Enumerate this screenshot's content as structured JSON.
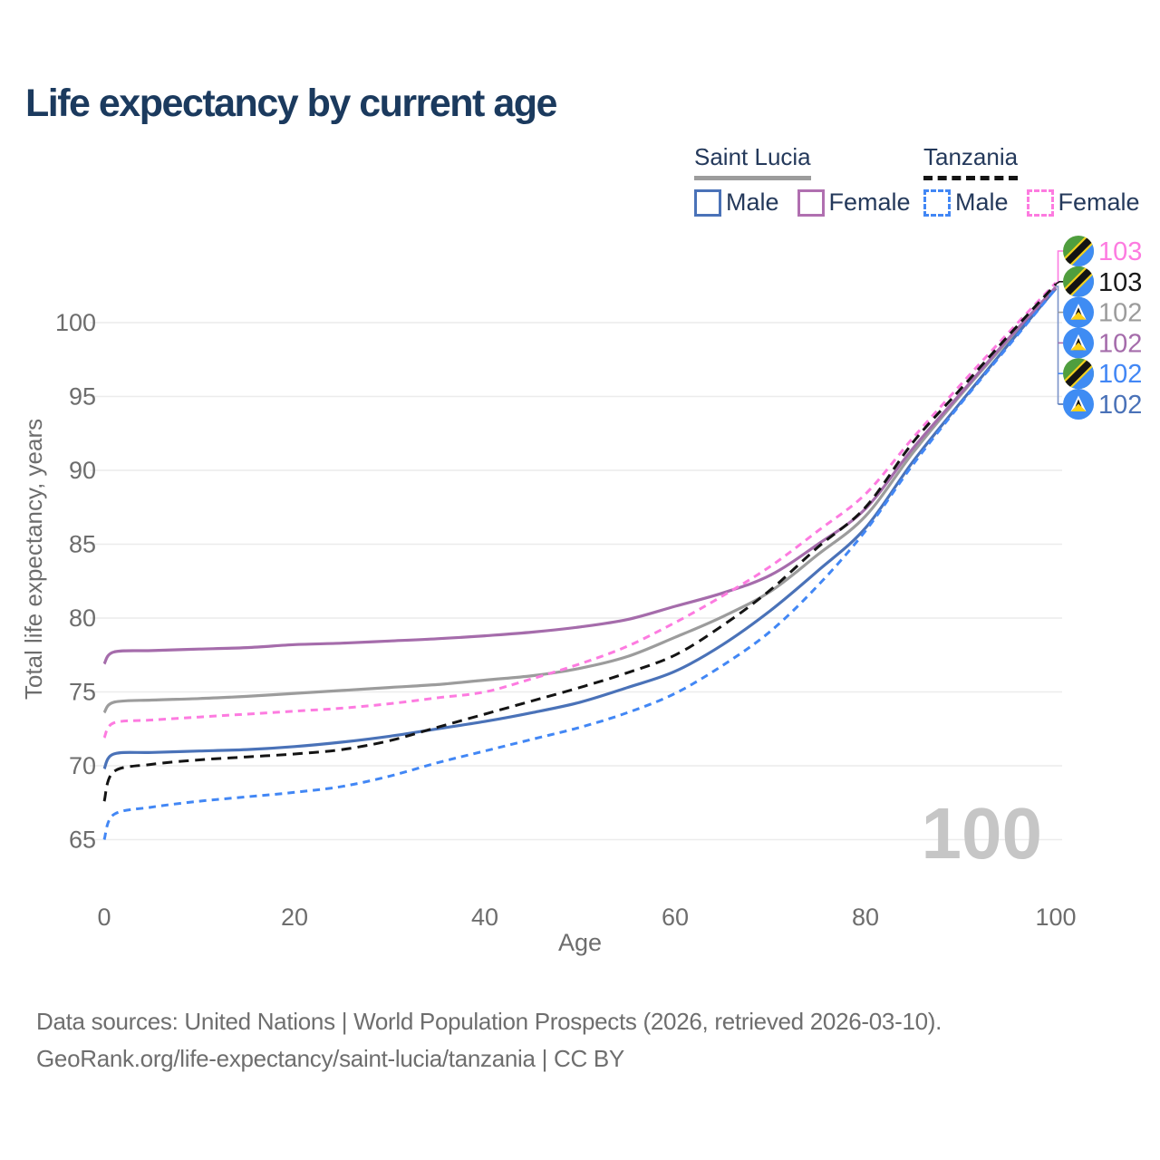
{
  "title": "Life expectancy by current age",
  "watermark": "100",
  "legend": {
    "groups": [
      {
        "country": "Saint Lucia",
        "line_style": "solid",
        "items": [
          {
            "label": "Male",
            "color": "#4a72b8"
          },
          {
            "label": "Female",
            "color": "#b06fb0"
          }
        ]
      },
      {
        "country": "Tanzania",
        "line_style": "dashed",
        "items": [
          {
            "label": "Male",
            "color": "#4287f5"
          },
          {
            "label": "Female",
            "color": "#fd7be0"
          }
        ]
      }
    ]
  },
  "footer": {
    "line1": "Data sources: United Nations | World Population Prospects (2026, retrieved 2026-03-10).",
    "line2": "GeoRank.org/life-expectancy/saint-lucia/tanzania | CC BY"
  },
  "chart_data": {
    "type": "line",
    "title": "Life expectancy by current age",
    "xlabel": "Age",
    "ylabel": "Total life expectancy, years",
    "xlim": [
      0,
      100
    ],
    "ylim": [
      64,
      104
    ],
    "x_ticks": [
      0,
      20,
      40,
      60,
      80,
      100
    ],
    "y_ticks": [
      65,
      70,
      75,
      80,
      85,
      90,
      95,
      100
    ],
    "grid": true,
    "legend_position": "top-right",
    "ages": [
      0,
      1,
      5,
      10,
      15,
      20,
      25,
      30,
      35,
      40,
      45,
      50,
      55,
      60,
      65,
      70,
      75,
      80,
      85,
      90,
      95,
      100
    ],
    "series": [
      {
        "id": "saint-lucia-total",
        "name": "Saint Lucia Total",
        "country": "Saint Lucia",
        "sex": "Both",
        "color": "#9c9c9c",
        "line_style": "solid",
        "values": [
          73.6,
          74.3,
          74.45,
          74.55,
          74.7,
          74.9,
          75.1,
          75.3,
          75.5,
          75.8,
          76.1,
          76.6,
          77.4,
          78.7,
          80.1,
          81.8,
          84.3,
          86.9,
          91.2,
          95.1,
          98.8,
          102.4
        ]
      },
      {
        "id": "saint-lucia-male",
        "name": "Saint Lucia Male",
        "country": "Saint Lucia",
        "sex": "Male",
        "color": "#4a72b8",
        "line_style": "solid",
        "values": [
          69.8,
          70.8,
          70.9,
          71.0,
          71.1,
          71.3,
          71.6,
          72.0,
          72.5,
          73.0,
          73.6,
          74.3,
          75.3,
          76.4,
          78.2,
          80.5,
          83.2,
          86.1,
          90.6,
          94.6,
          98.5,
          102.3
        ]
      },
      {
        "id": "saint-lucia-female",
        "name": "Saint Lucia Female",
        "country": "Saint Lucia",
        "sex": "Female",
        "color": "#a56cab",
        "line_style": "solid",
        "values": [
          76.9,
          77.7,
          77.8,
          77.9,
          78.0,
          78.2,
          78.3,
          78.45,
          78.6,
          78.8,
          79.05,
          79.4,
          79.9,
          80.8,
          81.7,
          82.9,
          85.0,
          87.4,
          91.5,
          95.2,
          98.9,
          102.4
        ]
      },
      {
        "id": "tanzania-female",
        "name": "Tanzania Female",
        "country": "Tanzania",
        "sex": "Female",
        "color": "#fd7be0",
        "line_style": "dashed",
        "values": [
          71.9,
          72.9,
          73.1,
          73.3,
          73.5,
          73.7,
          73.9,
          74.2,
          74.6,
          75.0,
          75.9,
          76.9,
          78.1,
          79.7,
          81.5,
          83.5,
          85.9,
          88.4,
          92.2,
          95.8,
          99.3,
          102.7
        ]
      },
      {
        "id": "tanzania-total",
        "name": "Tanzania Total",
        "country": "Tanzania",
        "sex": "Both",
        "color": "#141414",
        "line_style": "dashed",
        "values": [
          67.6,
          69.6,
          70.1,
          70.4,
          70.6,
          70.8,
          71.1,
          71.7,
          72.6,
          73.5,
          74.4,
          75.3,
          76.3,
          77.5,
          79.5,
          81.9,
          84.8,
          87.5,
          91.9,
          95.5,
          99.1,
          102.6
        ]
      },
      {
        "id": "tanzania-male",
        "name": "Tanzania Male",
        "country": "Tanzania",
        "sex": "Male",
        "color": "#4287f5",
        "line_style": "dashed",
        "values": [
          65.0,
          66.7,
          67.2,
          67.6,
          67.9,
          68.2,
          68.6,
          69.3,
          70.2,
          71.0,
          71.8,
          72.6,
          73.6,
          74.9,
          76.8,
          79.1,
          82.2,
          85.9,
          90.4,
          94.5,
          98.4,
          102.3
        ]
      }
    ],
    "end_labels": [
      {
        "series_id": "tanzania-female",
        "value": "103",
        "color": "#fd7be0",
        "flag": "tz",
        "country": "Tanzania"
      },
      {
        "series_id": "tanzania-total",
        "value": "103",
        "color": "#1a1a1a",
        "flag": "tz",
        "country": "Tanzania"
      },
      {
        "series_id": "saint-lucia-total",
        "value": "102",
        "color": "#9c9c9c",
        "flag": "lc",
        "country": "Saint Lucia"
      },
      {
        "series_id": "saint-lucia-female",
        "value": "102",
        "color": "#a56cab",
        "flag": "lc",
        "country": "Saint Lucia"
      },
      {
        "series_id": "tanzania-male",
        "value": "102",
        "color": "#4287f5",
        "flag": "tz",
        "country": "Tanzania"
      },
      {
        "series_id": "saint-lucia-male",
        "value": "102",
        "color": "#4a72b8",
        "flag": "lc",
        "country": "Saint Lucia"
      }
    ],
    "age_indicator": "100"
  }
}
